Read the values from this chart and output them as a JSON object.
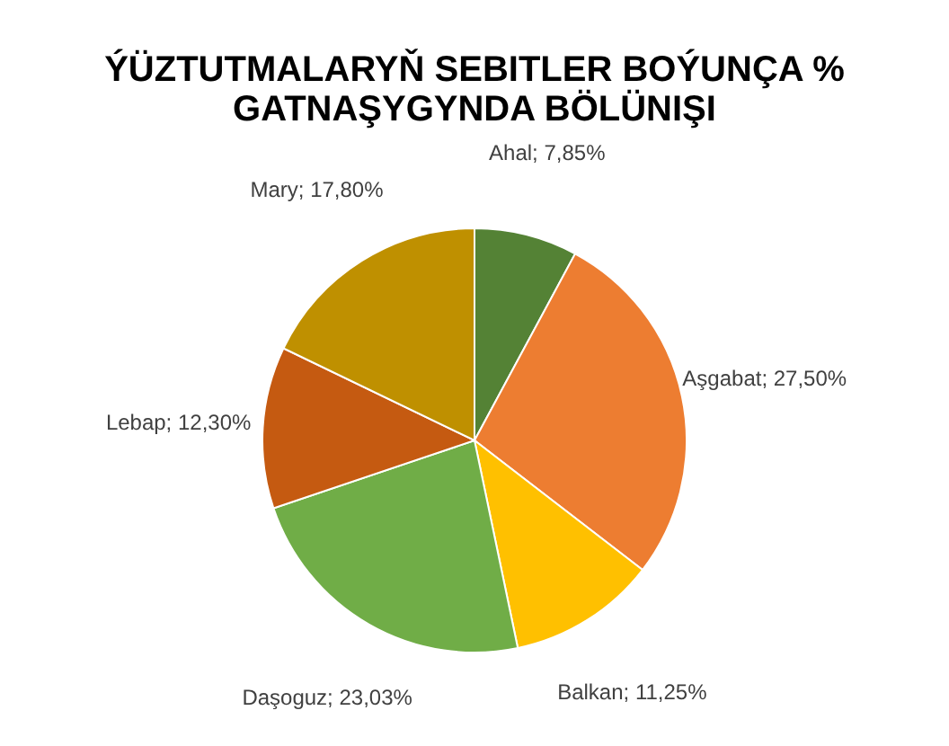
{
  "chart_data": {
    "type": "pie",
    "title": "ÝÜZTUTMALARYŇ SEBITLER BOÝUNÇA % GATNAŞYGYNDA BÖLÜNIŞI",
    "categories": [
      "Ahal",
      "Aşgabat",
      "Balkan",
      "Daşoguz",
      "Lebap",
      "Mary"
    ],
    "values": [
      7.85,
      27.5,
      11.25,
      23.03,
      12.3,
      17.8
    ],
    "value_labels": [
      "7,85%",
      "27,50%",
      "11,25%",
      "23,03%",
      "12,30%",
      "17,80%"
    ],
    "colors": [
      "#548235",
      "#ed7d31",
      "#ffc000",
      "#70ad47",
      "#c55a11",
      "#bf9000"
    ],
    "legend": false
  }
}
